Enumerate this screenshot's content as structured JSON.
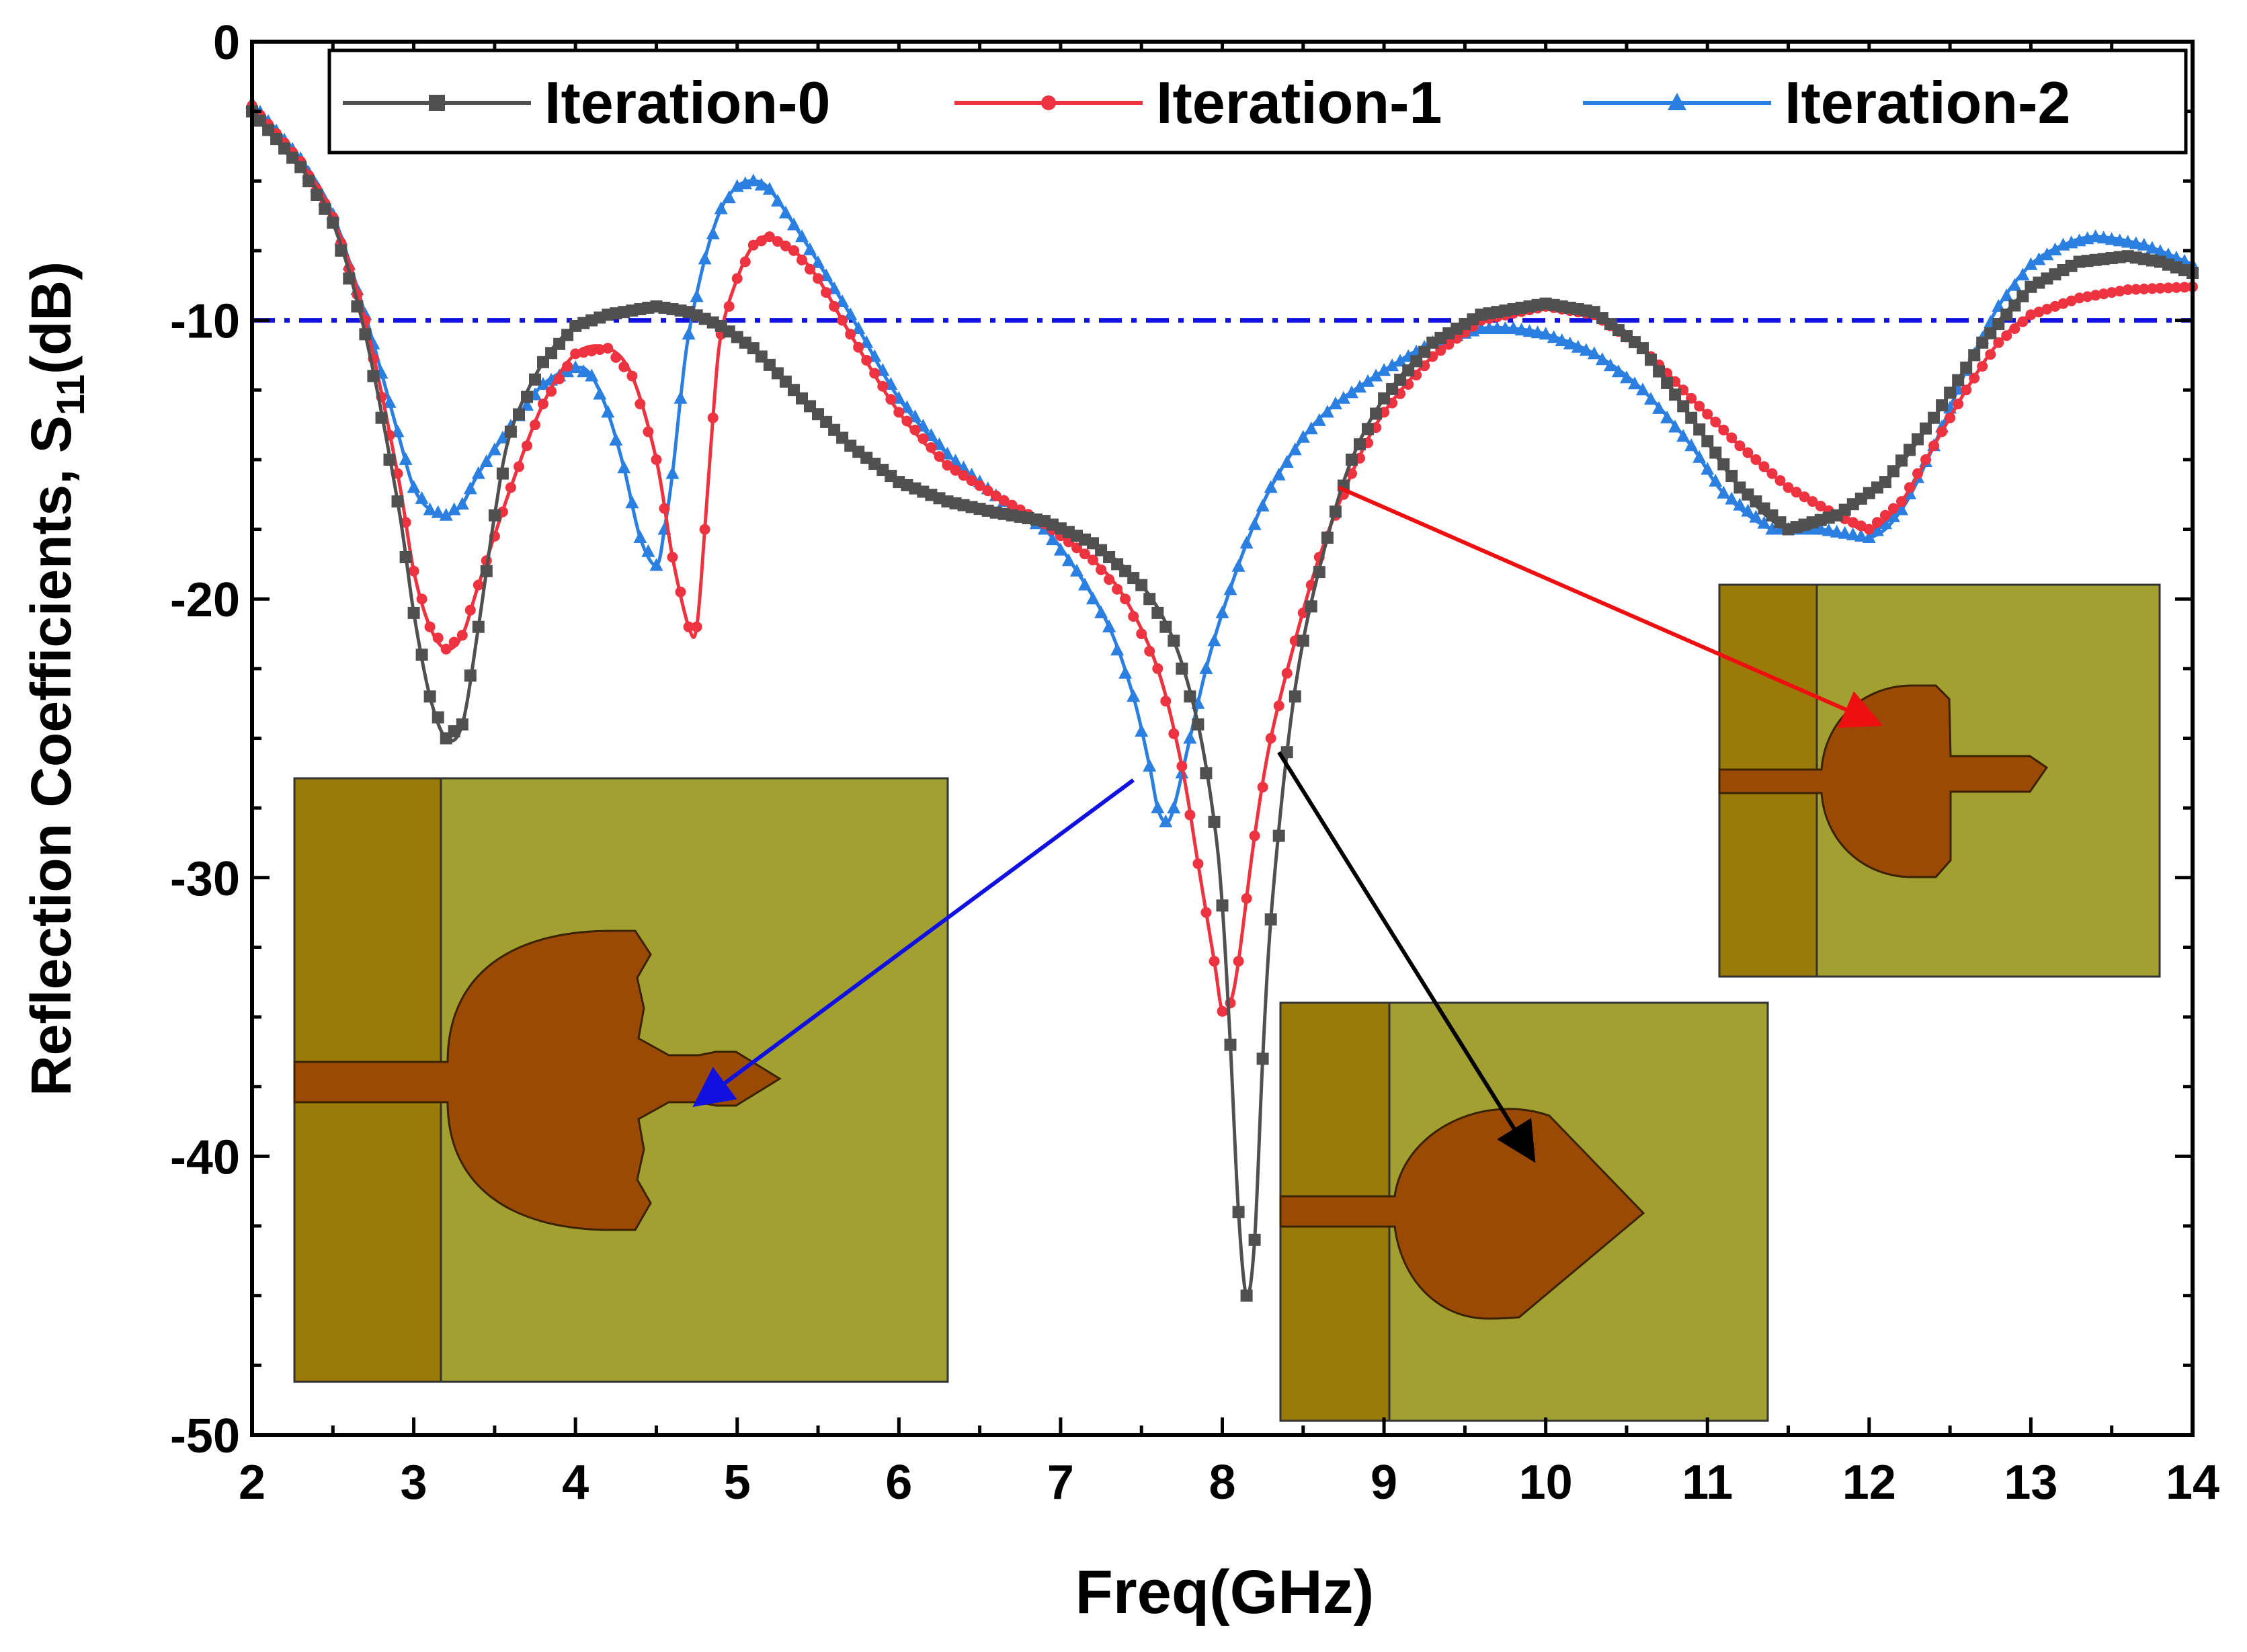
{
  "chart_data": {
    "type": "line",
    "title": "",
    "xlabel": "Freq(GHz)",
    "ylabel": {
      "prefix": "Reflection Coefficients, S",
      "subscript": "11",
      "suffix": "(dB)"
    },
    "xlim": [
      2,
      14
    ],
    "ylim": [
      -50,
      0
    ],
    "xticks": [
      "2",
      "3",
      "4",
      "5",
      "6",
      "7",
      "8",
      "9",
      "10",
      "11",
      "12",
      "13",
      "14"
    ],
    "yticks": [
      "0",
      "-10",
      "-20",
      "-30",
      "-40",
      "-50"
    ],
    "grid": false,
    "legend_position": "top-right",
    "reference_line": {
      "y": -10,
      "style": "dash-dot",
      "color": "#1010e0"
    },
    "series": [
      {
        "name": "Iteration-0",
        "color": "#505050",
        "marker": "square",
        "x": [
          2.0,
          2.3,
          2.5,
          2.7,
          2.9,
          3.0,
          3.1,
          3.2,
          3.3,
          3.4,
          3.5,
          3.6,
          3.8,
          4.0,
          4.2,
          4.5,
          4.7,
          4.9,
          5.1,
          5.4,
          5.7,
          6.0,
          6.3,
          6.6,
          6.9,
          7.2,
          7.5,
          7.7,
          7.85,
          7.95,
          8.0,
          8.05,
          8.1,
          8.15,
          8.2,
          8.25,
          8.3,
          8.4,
          8.5,
          8.65,
          8.8,
          9.0,
          9.3,
          9.6,
          10.0,
          10.3,
          10.6,
          10.9,
          11.2,
          11.5,
          11.8,
          12.1,
          12.4,
          12.7,
          13.0,
          13.3,
          13.6,
          13.8,
          14.0
        ],
        "y": [
          -2.5,
          -4.5,
          -6.5,
          -10.5,
          -16.5,
          -20.5,
          -23.5,
          -25.0,
          -24.5,
          -21.0,
          -17.0,
          -14.0,
          -11.5,
          -10.2,
          -9.8,
          -9.5,
          -9.7,
          -10.2,
          -11.0,
          -12.8,
          -14.5,
          -15.8,
          -16.5,
          -16.9,
          -17.2,
          -18.0,
          -19.5,
          -21.5,
          -24.5,
          -28.0,
          -31.0,
          -36.0,
          -42.0,
          -45.0,
          -43.0,
          -36.5,
          -31.5,
          -25.5,
          -21.5,
          -17.8,
          -15.0,
          -12.8,
          -10.8,
          -9.8,
          -9.4,
          -9.7,
          -11.0,
          -13.5,
          -16.0,
          -17.5,
          -17.0,
          -15.8,
          -13.5,
          -10.8,
          -8.8,
          -7.9,
          -7.7,
          -7.9,
          -8.3
        ]
      },
      {
        "name": "Iteration-1",
        "color": "#ee3340",
        "marker": "circle",
        "x": [
          2.0,
          2.3,
          2.5,
          2.7,
          2.9,
          3.0,
          3.1,
          3.2,
          3.3,
          3.4,
          3.6,
          3.8,
          4.0,
          4.2,
          4.35,
          4.5,
          4.6,
          4.7,
          4.75,
          4.8,
          4.85,
          4.9,
          5.0,
          5.1,
          5.2,
          5.35,
          5.5,
          5.7,
          6.0,
          6.3,
          6.6,
          6.9,
          7.2,
          7.4,
          7.6,
          7.75,
          7.85,
          7.95,
          8.0,
          8.05,
          8.1,
          8.2,
          8.3,
          8.45,
          8.6,
          8.8,
          9.0,
          9.3,
          9.6,
          10.0,
          10.3,
          10.6,
          10.9,
          11.2,
          11.5,
          11.8,
          12.0,
          12.2,
          12.4,
          12.6,
          12.8,
          13.0,
          13.3,
          13.6,
          14.0
        ],
        "y": [
          -2.3,
          -4.3,
          -6.3,
          -10.0,
          -15.5,
          -19.0,
          -21.0,
          -21.8,
          -21.3,
          -19.5,
          -16.0,
          -13.0,
          -11.2,
          -11.0,
          -12.0,
          -15.0,
          -18.5,
          -21.0,
          -21.0,
          -17.5,
          -13.5,
          -10.5,
          -8.5,
          -7.3,
          -7.0,
          -7.5,
          -8.5,
          -10.5,
          -13.3,
          -15.2,
          -16.3,
          -17.3,
          -18.6,
          -20.0,
          -22.5,
          -26.0,
          -29.5,
          -33.0,
          -34.8,
          -34.5,
          -33.0,
          -28.5,
          -25.0,
          -21.5,
          -18.5,
          -15.5,
          -13.3,
          -11.3,
          -10.0,
          -9.5,
          -9.8,
          -11.0,
          -12.8,
          -14.5,
          -16.0,
          -17.0,
          -17.5,
          -16.5,
          -14.5,
          -12.5,
          -10.8,
          -9.8,
          -9.2,
          -8.9,
          -8.8
        ]
      },
      {
        "name": "Iteration-2",
        "color": "#2a7fe0",
        "marker": "triangle",
        "x": [
          2.0,
          2.3,
          2.5,
          2.7,
          2.9,
          3.0,
          3.1,
          3.2,
          3.3,
          3.4,
          3.6,
          3.8,
          4.0,
          4.1,
          4.2,
          4.3,
          4.4,
          4.5,
          4.55,
          4.6,
          4.65,
          4.7,
          4.8,
          4.9,
          5.0,
          5.1,
          5.2,
          5.4,
          5.7,
          6.0,
          6.3,
          6.6,
          6.9,
          7.1,
          7.3,
          7.45,
          7.55,
          7.6,
          7.65,
          7.7,
          7.8,
          7.9,
          8.0,
          8.15,
          8.3,
          8.5,
          8.7,
          9.0,
          9.3,
          9.6,
          9.8,
          10.0,
          10.3,
          10.6,
          10.9,
          11.1,
          11.4,
          11.7,
          12.0,
          12.2,
          12.4,
          12.6,
          12.8,
          13.0,
          13.2,
          13.4,
          13.7,
          14.0
        ],
        "y": [
          -2.2,
          -4.2,
          -6.2,
          -9.8,
          -14.0,
          -16.0,
          -16.8,
          -17.0,
          -16.6,
          -15.5,
          -13.8,
          -12.3,
          -11.7,
          -12.0,
          -13.3,
          -15.3,
          -17.8,
          -18.8,
          -17.5,
          -15.5,
          -12.8,
          -10.5,
          -7.8,
          -6.0,
          -5.2,
          -5.0,
          -5.3,
          -7.0,
          -9.8,
          -12.8,
          -14.8,
          -16.3,
          -17.5,
          -19.0,
          -21.0,
          -23.5,
          -26.0,
          -27.5,
          -28.0,
          -27.5,
          -25.0,
          -22.5,
          -20.5,
          -18.0,
          -16.0,
          -14.2,
          -13.0,
          -11.8,
          -10.8,
          -10.3,
          -10.3,
          -10.5,
          -11.2,
          -12.5,
          -14.5,
          -16.2,
          -17.5,
          -17.5,
          -17.8,
          -16.8,
          -14.5,
          -11.8,
          -9.5,
          -8.0,
          -7.3,
          -7.0,
          -7.3,
          -8.0
        ]
      }
    ],
    "insets": [
      {
        "label": "Iteration-2 antenna geometry",
        "points_to": {
          "x": 7.45,
          "y": -26.5
        }
      },
      {
        "label": "Iteration-0 antenna geometry",
        "points_to": {
          "x": 8.35,
          "y": -25.5
        }
      },
      {
        "label": "Iteration-1 antenna geometry",
        "points_to": {
          "x": 8.72,
          "y": -16.0
        }
      }
    ]
  }
}
